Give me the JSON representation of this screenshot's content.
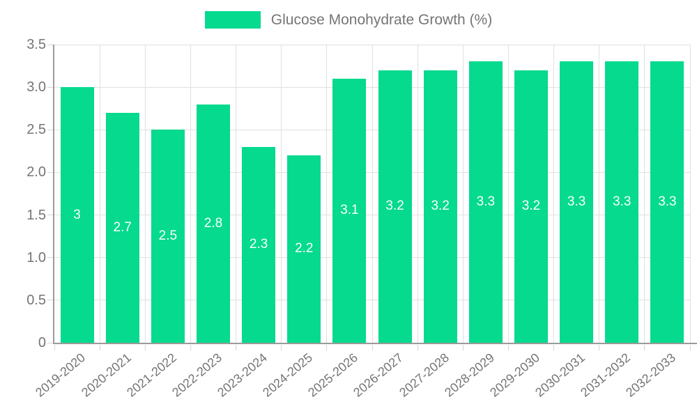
{
  "legend": {
    "label": "Glucose Monohydrate Growth (%)"
  },
  "chart_data": {
    "type": "bar",
    "title": "Glucose Monohydrate Growth (%)",
    "xlabel": "",
    "ylabel": "",
    "categories": [
      "2019-2020",
      "2020-2021",
      "2021-2022",
      "2022-2023",
      "2023-2024",
      "2024-2025",
      "2025-2026",
      "2026-2027",
      "2027-2028",
      "2028-2029",
      "2029-2030",
      "2030-2031",
      "2031-2032",
      "2032-2033"
    ],
    "values": [
      3,
      2.7,
      2.5,
      2.8,
      2.3,
      2.2,
      3.1,
      3.2,
      3.2,
      3.3,
      3.2,
      3.3,
      3.3,
      3.3
    ],
    "bar_labels": [
      "3",
      "2.7",
      "2.5",
      "2.8",
      "2.3",
      "2.2",
      "3.1",
      "3.2",
      "3.2",
      "3.3",
      "3.2",
      "3.3",
      "3.3",
      "3.3"
    ],
    "ylim": [
      0,
      3.5
    ],
    "yticks": [
      0,
      0.5,
      1,
      1.5,
      2,
      2.5,
      3,
      3.5
    ],
    "ytick_labels": [
      "0",
      "0.5",
      "1.0",
      "1.5",
      "2.0",
      "2.5",
      "3.0",
      "3.5"
    ],
    "grid": true,
    "legend_position": "top-center",
    "xtick_rotation": -40,
    "colors": {
      "bar": "#05da8e",
      "grid": "#e0e0e0",
      "axis_line": "#9a9a9a",
      "tick": "#d6d6d6",
      "text": "#757575",
      "bar_label": "#ffffff"
    }
  }
}
